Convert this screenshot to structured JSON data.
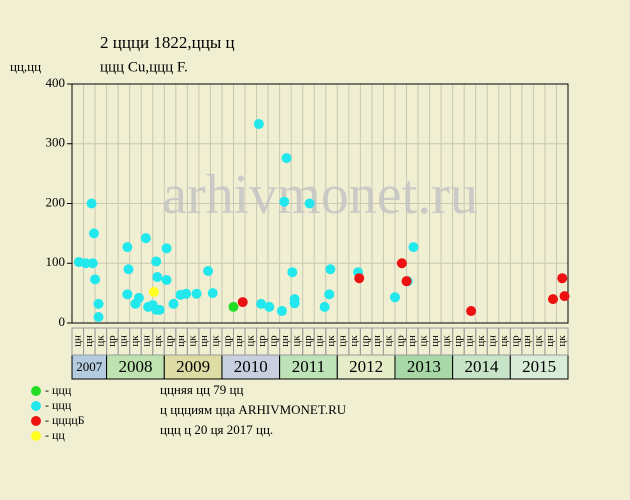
{
  "chart_data": {
    "type": "scatter",
    "title": "2 ццци 1822,ццы ц",
    "subtitle": "ццц Cu,ццц F.",
    "y_label": "цц,цц",
    "watermark": "arhivmonet.ru",
    "xlim": [
      0,
      43
    ],
    "ylim": [
      0,
      400
    ],
    "yticks": [
      0,
      100,
      200,
      300,
      400
    ],
    "grid": true,
    "groups": [
      {
        "label": "2007",
        "color": "#b4cce0",
        "columns": [
          "цн",
          "цн",
          "цк"
        ]
      },
      {
        "label": "2008",
        "color": "#bfe3b0",
        "columns": [
          "цр",
          "цн",
          "цк",
          "цн",
          "цк"
        ]
      },
      {
        "label": "2009",
        "color": "#dcdca4",
        "columns": [
          "цр",
          "цн",
          "цк",
          "цн",
          "цк"
        ]
      },
      {
        "label": "2010",
        "color": "#c8d0e0",
        "columns": [
          "цр",
          "цн",
          "цк",
          "цр",
          "цр"
        ]
      },
      {
        "label": "2011",
        "color": "#bfe3b8",
        "columns": [
          "цн",
          "цк",
          "цр",
          "цн",
          "цк"
        ]
      },
      {
        "label": "2012",
        "color": "#e4ecc8",
        "columns": [
          "цн",
          "цк",
          "цр",
          "цн",
          "цк"
        ]
      },
      {
        "label": "2013",
        "color": "#a8d8a8",
        "columns": [
          "цр",
          "цн",
          "цк",
          "цн",
          "цк"
        ]
      },
      {
        "label": "2014",
        "color": "#c8e4c8",
        "columns": [
          "цр",
          "цн",
          "цк",
          "цн",
          "цк"
        ]
      },
      {
        "label": "2015",
        "color": "#d8ecd8",
        "columns": [
          "цр",
          "цн",
          "цк",
          "цн",
          "цк"
        ]
      }
    ],
    "series": [
      {
        "name": "- ццц",
        "color": "#22dd22",
        "x": [
          14.0
        ],
        "values": [
          27
        ]
      },
      {
        "name": "- ццц",
        "color": "#22e8ee",
        "x": [
          0.6,
          1.2,
          1.8,
          1.7,
          1.9,
          2.0,
          2.3,
          2.3,
          4.8,
          4.9,
          4.8,
          5.5,
          5.8,
          6.4,
          6.6,
          7.0,
          7.3,
          7.4,
          7.3,
          7.6,
          8.2,
          8.2,
          8.8,
          9.4,
          9.9,
          10.8,
          11.8,
          12.2,
          16.2,
          16.4,
          17.1,
          18.2,
          18.4,
          18.6,
          19.1,
          19.3,
          19.3,
          20.6,
          21.9,
          22.4,
          22.3,
          24.8,
          28.0,
          29.1,
          29.6
        ],
        "values": [
          102,
          100,
          100,
          200,
          150,
          73,
          10,
          32,
          127,
          90,
          48,
          32,
          42,
          142,
          27,
          30,
          103,
          77,
          22,
          22,
          72,
          125,
          32,
          47,
          49,
          49,
          87,
          50,
          333,
          32,
          27,
          20,
          203,
          276,
          85,
          33,
          40,
          200,
          27,
          90,
          48,
          85,
          43,
          70,
          127
        ]
      },
      {
        "name": "- ццццБ",
        "color": "#ee1111",
        "x": [
          14.8,
          24.9,
          28.6,
          29.0,
          34.6,
          41.7,
          42.5,
          42.7
        ],
        "values": [
          35,
          75,
          100,
          70,
          20,
          40,
          75,
          45
        ]
      },
      {
        "name": "- цц",
        "color": "#ffff22",
        "x": [
          7.1
        ],
        "values": [
          52
        ]
      }
    ],
    "notes": [
      "ццняя цц 79 цц",
      "ц ццциям цца ARHIVMONET.RU",
      "ццц ц 20 ця 2017 цц."
    ]
  }
}
